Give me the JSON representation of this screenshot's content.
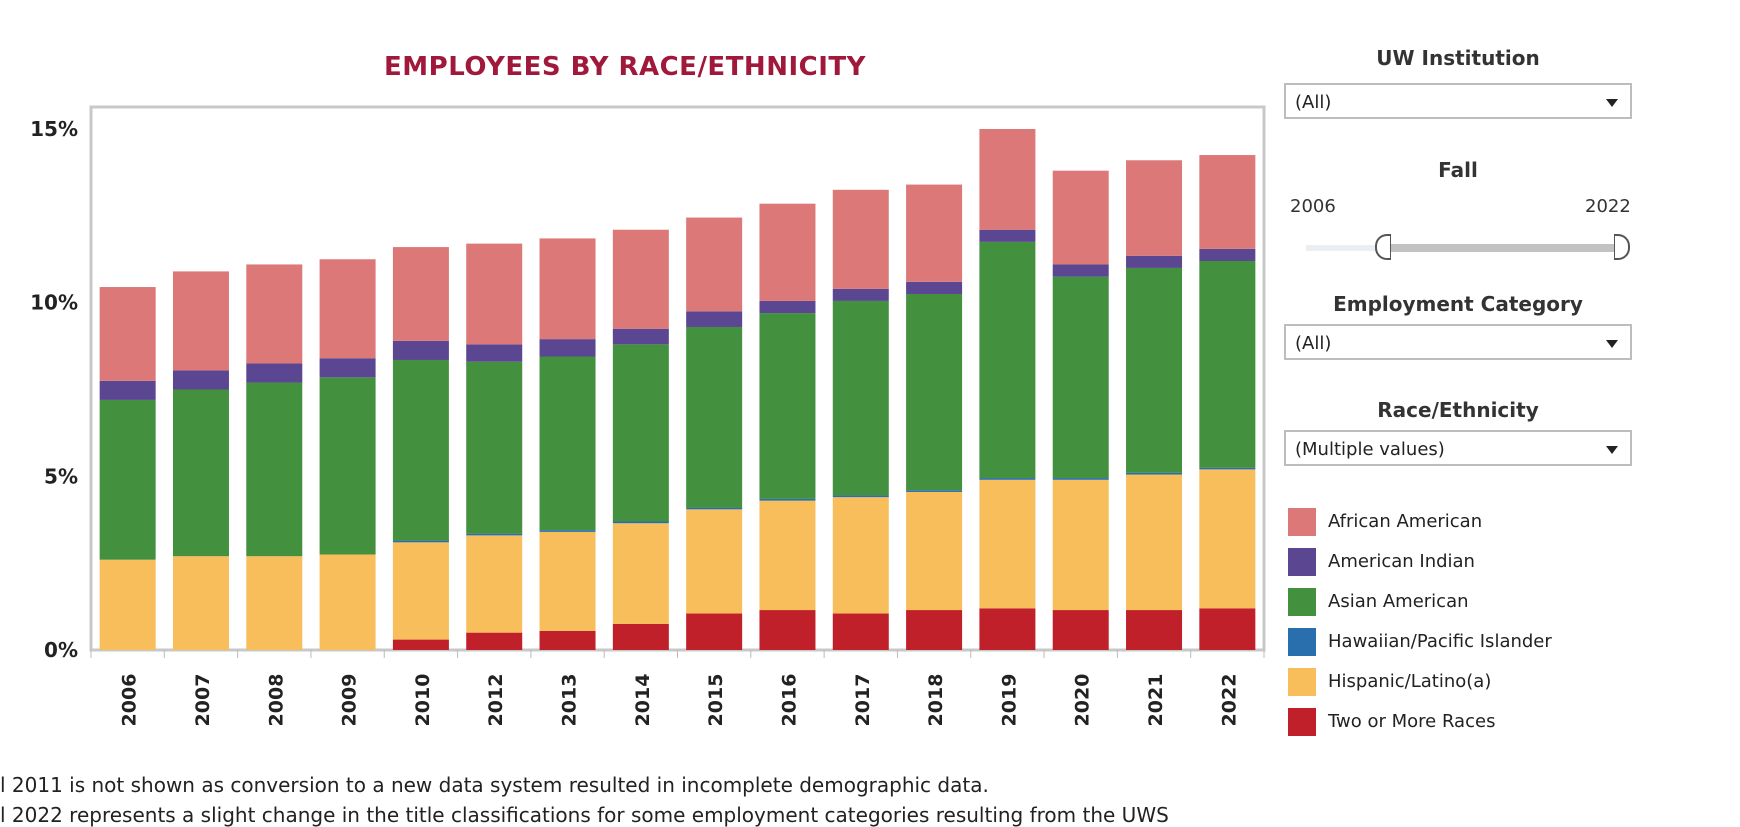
{
  "chart_data": {
    "type": "bar",
    "stacked": true,
    "title": "EMPLOYEES BY RACE/ETHNICITY",
    "categories": [
      "2006",
      "2007",
      "2008",
      "2009",
      "2010",
      "2012",
      "2013",
      "2014",
      "2015",
      "2016",
      "2017",
      "2018",
      "2019",
      "2020",
      "2021",
      "2022"
    ],
    "series": [
      {
        "name": "Two or More Races",
        "color": "#c02029",
        "values": [
          0.0,
          0.0,
          0.0,
          0.0,
          0.3,
          0.5,
          0.55,
          0.75,
          1.05,
          1.15,
          1.05,
          1.15,
          1.2,
          1.15,
          1.15,
          1.2
        ]
      },
      {
        "name": "Hispanic/Latino(a)",
        "color": "#f8be5c",
        "values": [
          2.6,
          2.7,
          2.7,
          2.75,
          2.8,
          2.8,
          2.85,
          2.9,
          3.0,
          3.15,
          3.35,
          3.4,
          3.7,
          3.75,
          3.9,
          4.0
        ]
      },
      {
        "name": "Hawaiian/Pacific Islander",
        "color": "#2a6fad",
        "values": [
          0.0,
          0.0,
          0.0,
          0.0,
          0.05,
          0.05,
          0.05,
          0.05,
          0.05,
          0.05,
          0.05,
          0.05,
          0.05,
          0.05,
          0.05,
          0.05
        ]
      },
      {
        "name": "Asian American",
        "color": "#43903f",
        "values": [
          4.6,
          4.8,
          5.0,
          5.1,
          5.2,
          4.95,
          5.0,
          5.1,
          5.2,
          5.35,
          5.6,
          5.65,
          6.8,
          5.8,
          5.9,
          5.95
        ]
      },
      {
        "name": "American Indian",
        "color": "#5b4691",
        "values": [
          0.55,
          0.55,
          0.55,
          0.55,
          0.55,
          0.5,
          0.5,
          0.45,
          0.45,
          0.35,
          0.35,
          0.35,
          0.35,
          0.35,
          0.35,
          0.35
        ]
      },
      {
        "name": "African American",
        "color": "#dc7878",
        "values": [
          2.7,
          2.85,
          2.85,
          2.85,
          2.7,
          2.9,
          2.9,
          2.85,
          2.7,
          2.8,
          2.85,
          2.8,
          2.9,
          2.7,
          2.75,
          2.7
        ]
      }
    ],
    "yticks": [
      "0%",
      "5%",
      "10%",
      "15%"
    ],
    "ylim": [
      0,
      15
    ],
    "legend_position": "right"
  },
  "filters": {
    "institution": {
      "label": "UW Institution",
      "value": "(All)"
    },
    "fall": {
      "label": "Fall",
      "min": "2006",
      "max": "2022"
    },
    "employment_category": {
      "label": "Employment Category",
      "value": "(All)"
    },
    "race_ethnicity": {
      "label": "Race/Ethnicity",
      "value": "(Multiple values)"
    }
  },
  "legend": [
    {
      "label": "African American",
      "color": "#dc7878"
    },
    {
      "label": "American Indian",
      "color": "#5b4691"
    },
    {
      "label": "Asian American",
      "color": "#43903f"
    },
    {
      "label": "Hawaiian/Pacific Islander",
      "color": "#2a6fad"
    },
    {
      "label": "Hispanic/Latino(a)",
      "color": "#f8be5c"
    },
    {
      "label": "Two or More Races",
      "color": "#c02029"
    }
  ],
  "footnotes": [
    "l 2011 is not shown as conversion to a new data system resulted in incomplete demographic data.",
    "l 2022 represents a slight change in the title classifications for some employment categories resulting from the UWS"
  ]
}
